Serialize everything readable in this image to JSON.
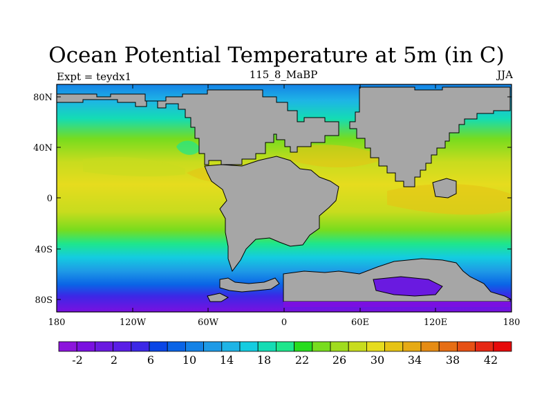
{
  "plot": {
    "title": "Ocean Potential Temperature at 5m (in C)",
    "left_string": "Expt = teydx1",
    "center_string": "115_8_MaBP",
    "right_string": "JJA"
  },
  "axes": {
    "x_ticks": [
      {
        "value": -180,
        "label": "180"
      },
      {
        "value": -120,
        "label": "120W"
      },
      {
        "value": -60,
        "label": "60W"
      },
      {
        "value": 0,
        "label": "0"
      },
      {
        "value": 60,
        "label": "60E"
      },
      {
        "value": 120,
        "label": "120E"
      },
      {
        "value": 180,
        "label": "180"
      }
    ],
    "y_ticks": [
      {
        "value": 80,
        "label": "80N"
      },
      {
        "value": 40,
        "label": "40N"
      },
      {
        "value": 0,
        "label": "0"
      },
      {
        "value": -40,
        "label": "40S"
      },
      {
        "value": -80,
        "label": "80S"
      }
    ],
    "lon_range": [
      -180,
      180
    ],
    "lat_range": [
      -90,
      90
    ]
  },
  "colorbar": {
    "labels": [
      "-2",
      "2",
      "6",
      "10",
      "14",
      "18",
      "22",
      "26",
      "30",
      "34",
      "38",
      "42"
    ],
    "colors": [
      "#8c14dc",
      "#7a10e0",
      "#6a1ae0",
      "#5a1ee6",
      "#3c28e6",
      "#0a46e6",
      "#0a64e6",
      "#1482e6",
      "#1e9ae6",
      "#1eb4e6",
      "#14cce0",
      "#14dcb4",
      "#1ee68c",
      "#28dc1e",
      "#78dc1e",
      "#a0dc1e",
      "#c8dc1e",
      "#e6dc1e",
      "#e6c314",
      "#e6aa14",
      "#e68c14",
      "#e66e14",
      "#e65014",
      "#e62814",
      "#e60a0a"
    ]
  },
  "map": {
    "land_color": "#a6a6a6",
    "warm_color": "#e6c314",
    "cold_color": "#6a1ae0"
  }
}
